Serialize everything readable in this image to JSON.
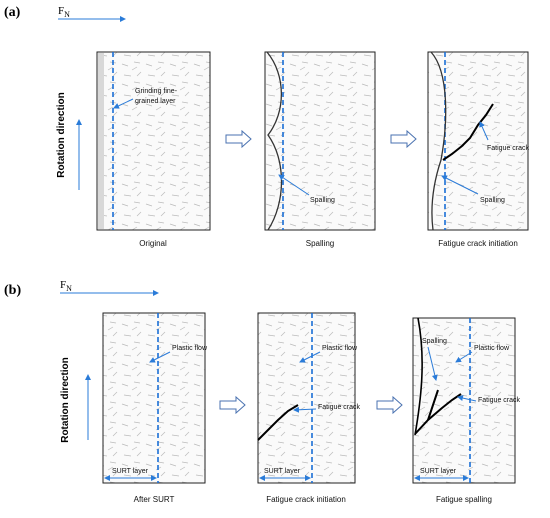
{
  "panel_a": {
    "label": "(a)",
    "force": {
      "main": "F",
      "sub": "N"
    },
    "rotation": "Rotation direction",
    "stages": [
      {
        "caption": "Original",
        "notes": [
          "Grinding fine-",
          "grained layer"
        ]
      },
      {
        "caption": "Spalling",
        "notes": [
          "Spalling"
        ]
      },
      {
        "caption": "Fatigue crack initiation",
        "notes": [
          "Fatigue crack",
          "Spalling"
        ]
      }
    ]
  },
  "panel_b": {
    "label": "(b)",
    "force": {
      "main": "F",
      "sub": "N"
    },
    "rotation": "Rotation direction",
    "stages": [
      {
        "caption": "After SURT",
        "notes": [
          "Plastic flow",
          "SURT layer"
        ]
      },
      {
        "caption": "Fatigue crack initiation",
        "notes": [
          "Plastic flow",
          "Fatigue crack",
          "SURT layer"
        ]
      },
      {
        "caption": "Fatigue spalling",
        "notes": [
          "Spalling",
          "Plastic flow",
          "Fatigue crack",
          "SURT layer"
        ]
      }
    ]
  }
}
